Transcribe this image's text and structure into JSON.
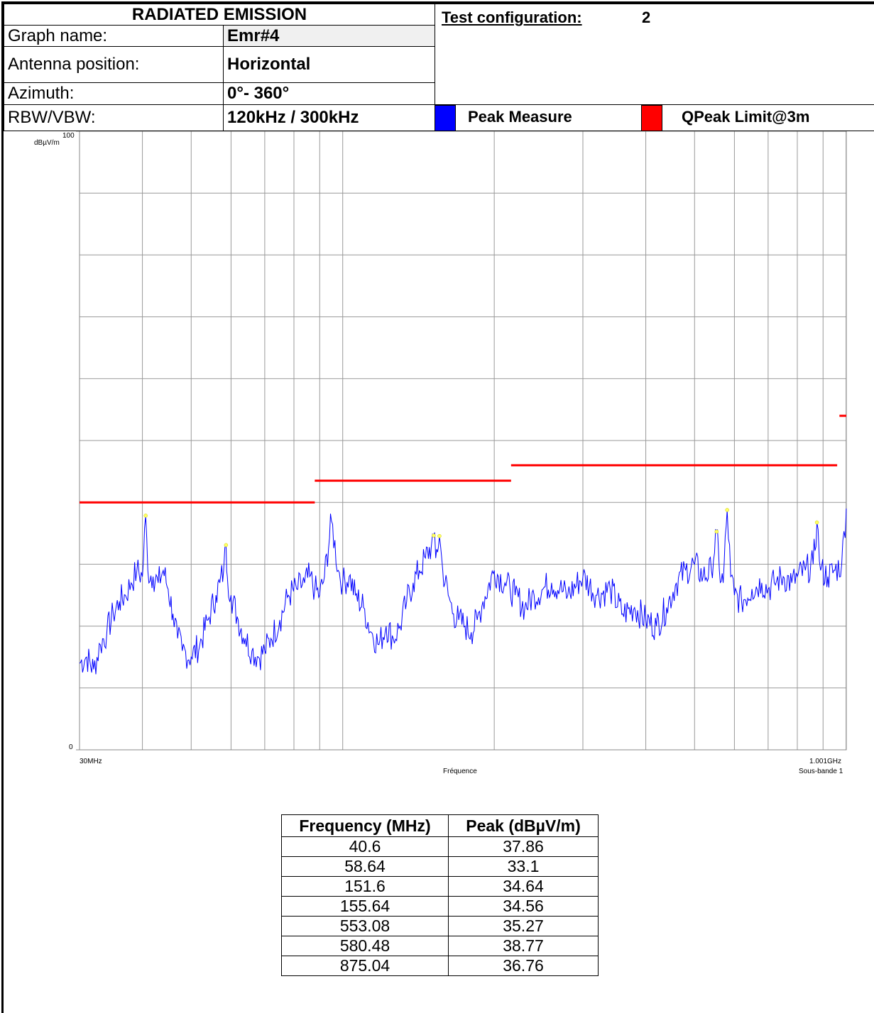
{
  "header": {
    "title": "RADIATED EMISSION",
    "test_config_label": "Test configuration:",
    "test_config_value": "2",
    "rows": [
      {
        "label": "Graph name:",
        "value": "Emr#4"
      },
      {
        "label": "Antenna position:",
        "value": "Horizontal"
      },
      {
        "label": "Azimuth:",
        "value": "0°- 360°"
      },
      {
        "label": "RBW/VBW:",
        "value": "120kHz / 300kHz"
      }
    ],
    "legend": [
      {
        "label": "Peak Measure",
        "color": "#0000ff"
      },
      {
        "label": "QPeak Limit@3m",
        "color": "#ff0000"
      }
    ]
  },
  "chart_data": {
    "type": "line",
    "x_scale": "log",
    "xlim": [
      30,
      1001
    ],
    "ylim": [
      0,
      100
    ],
    "y_unit_label": "dBµV/m",
    "y_tick_labels": [
      "100",
      "0"
    ],
    "x_tick_labels": [
      "30MHz",
      "1.001GHz"
    ],
    "xlabel": "Fréquence",
    "subband_label": "Sous-bande 1",
    "series": [
      {
        "name": "Peak Measure",
        "color": "#0000ff",
        "x": [
          30,
          31,
          32,
          33,
          34,
          35,
          36,
          37,
          38,
          39,
          40,
          40.6,
          41,
          42,
          43,
          44,
          45,
          46,
          47,
          48,
          50,
          52,
          54,
          56,
          57,
          58,
          58.64,
          59,
          60,
          62,
          64,
          66,
          68,
          70,
          72,
          75,
          78,
          81,
          84,
          86,
          88,
          90,
          92,
          95,
          98,
          100,
          103,
          106,
          110,
          114,
          118,
          122,
          126,
          130,
          134,
          138,
          142,
          146,
          150,
          151.6,
          153,
          155.64,
          158,
          162,
          166,
          170,
          175,
          180,
          185,
          190,
          200,
          210,
          215,
          220,
          230,
          240,
          250,
          260,
          270,
          280,
          300,
          320,
          340,
          360,
          380,
          400,
          420,
          440,
          460,
          480,
          500,
          520,
          540,
          553.08,
          560,
          570,
          580.48,
          590,
          600,
          620,
          650,
          680,
          700,
          720,
          750,
          780,
          800,
          830,
          860,
          875.04,
          890,
          920,
          950,
          980,
          1001
        ],
        "y": [
          14,
          15,
          13,
          17,
          19,
          22,
          24,
          25,
          27,
          29,
          28,
          37.86,
          29,
          28,
          27,
          29,
          26,
          22,
          18,
          16,
          15,
          17,
          21,
          25,
          27,
          29,
          33.1,
          28,
          25,
          21,
          18,
          16,
          15,
          16,
          18,
          21,
          25,
          26,
          27,
          28,
          26,
          25,
          28,
          37,
          29,
          27,
          28,
          25,
          23,
          19,
          17,
          20,
          18,
          20,
          24,
          27,
          29,
          31,
          33,
          34.64,
          31,
          34.56,
          29,
          25,
          22,
          21,
          20,
          19,
          21,
          24,
          29,
          27,
          26,
          25,
          23,
          25,
          26,
          27,
          26,
          25,
          28,
          25,
          26,
          22,
          23,
          21,
          20,
          23,
          27,
          29,
          30,
          28,
          29,
          35.27,
          29,
          27,
          38.77,
          28,
          25,
          24,
          26,
          27,
          26,
          27,
          28,
          27,
          28,
          29,
          30,
          36.76,
          29,
          28,
          29,
          30,
          39
        ]
      },
      {
        "name": "QPeak Limit@3m",
        "color": "#ff0000",
        "segments": [
          {
            "x": [
              30,
              88
            ],
            "y": 40
          },
          {
            "x": [
              88,
              216
            ],
            "y": 43.5
          },
          {
            "x": [
              216,
              960
            ],
            "y": 46
          },
          {
            "x": [
              970,
              1001
            ],
            "y": 54
          }
        ]
      }
    ],
    "markers": [
      {
        "x": 40.6,
        "y": 37.86
      },
      {
        "x": 58.64,
        "y": 33.1
      },
      {
        "x": 151.6,
        "y": 34.64
      },
      {
        "x": 155.64,
        "y": 34.56
      },
      {
        "x": 553.08,
        "y": 35.27
      },
      {
        "x": 580.48,
        "y": 38.77
      },
      {
        "x": 875.04,
        "y": 36.76
      }
    ],
    "grid": true
  },
  "results_table": {
    "headers": [
      "Frequency (MHz)",
      "Peak (dBµV/m)"
    ],
    "rows": [
      [
        "40.6",
        "37.86"
      ],
      [
        "58.64",
        "33.1"
      ],
      [
        "151.6",
        "34.64"
      ],
      [
        "155.64",
        "34.56"
      ],
      [
        "553.08",
        "35.27"
      ],
      [
        "580.48",
        "38.77"
      ],
      [
        "875.04",
        "36.76"
      ]
    ]
  }
}
